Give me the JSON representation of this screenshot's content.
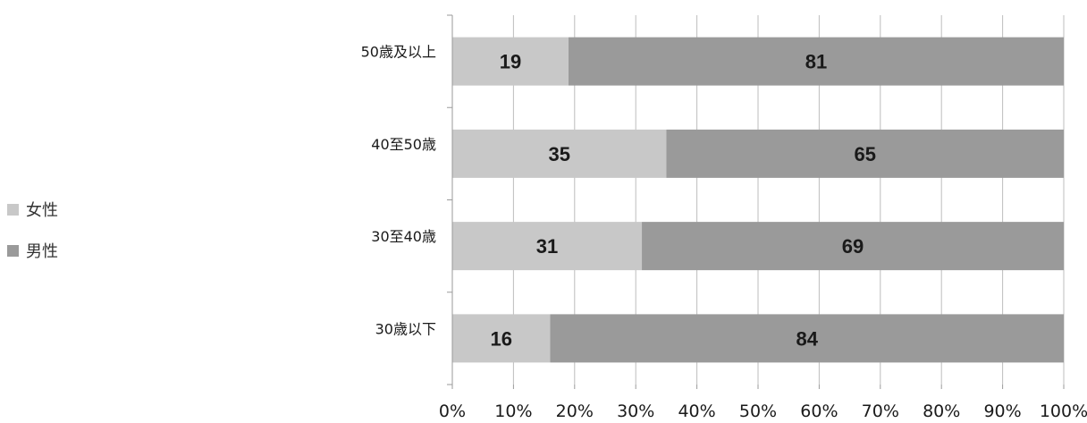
{
  "chart_data": {
    "type": "bar",
    "orientation": "horizontal",
    "stacked": true,
    "percent": true,
    "categories": [
      "50歳及以上",
      "40至50歳",
      "30至40歳",
      "30歳以下"
    ],
    "series": [
      {
        "name": "女性",
        "values": [
          19,
          35,
          31,
          16
        ],
        "color": "#c8c8c8"
      },
      {
        "name": "男性",
        "values": [
          81,
          65,
          69,
          84
        ],
        "color": "#9a9a9a"
      }
    ],
    "title": "",
    "xlabel": "",
    "ylabel": "",
    "xlim": [
      0,
      100
    ],
    "x_ticks": [
      "0%",
      "10%",
      "20%",
      "30%",
      "40%",
      "50%",
      "60%",
      "70%",
      "80%",
      "90%",
      "100%"
    ],
    "grid": true,
    "legend_position": "left"
  },
  "legend": {
    "items": [
      {
        "label": "女性",
        "color": "#c8c8c8"
      },
      {
        "label": "男性",
        "color": "#9a9a9a"
      }
    ]
  }
}
